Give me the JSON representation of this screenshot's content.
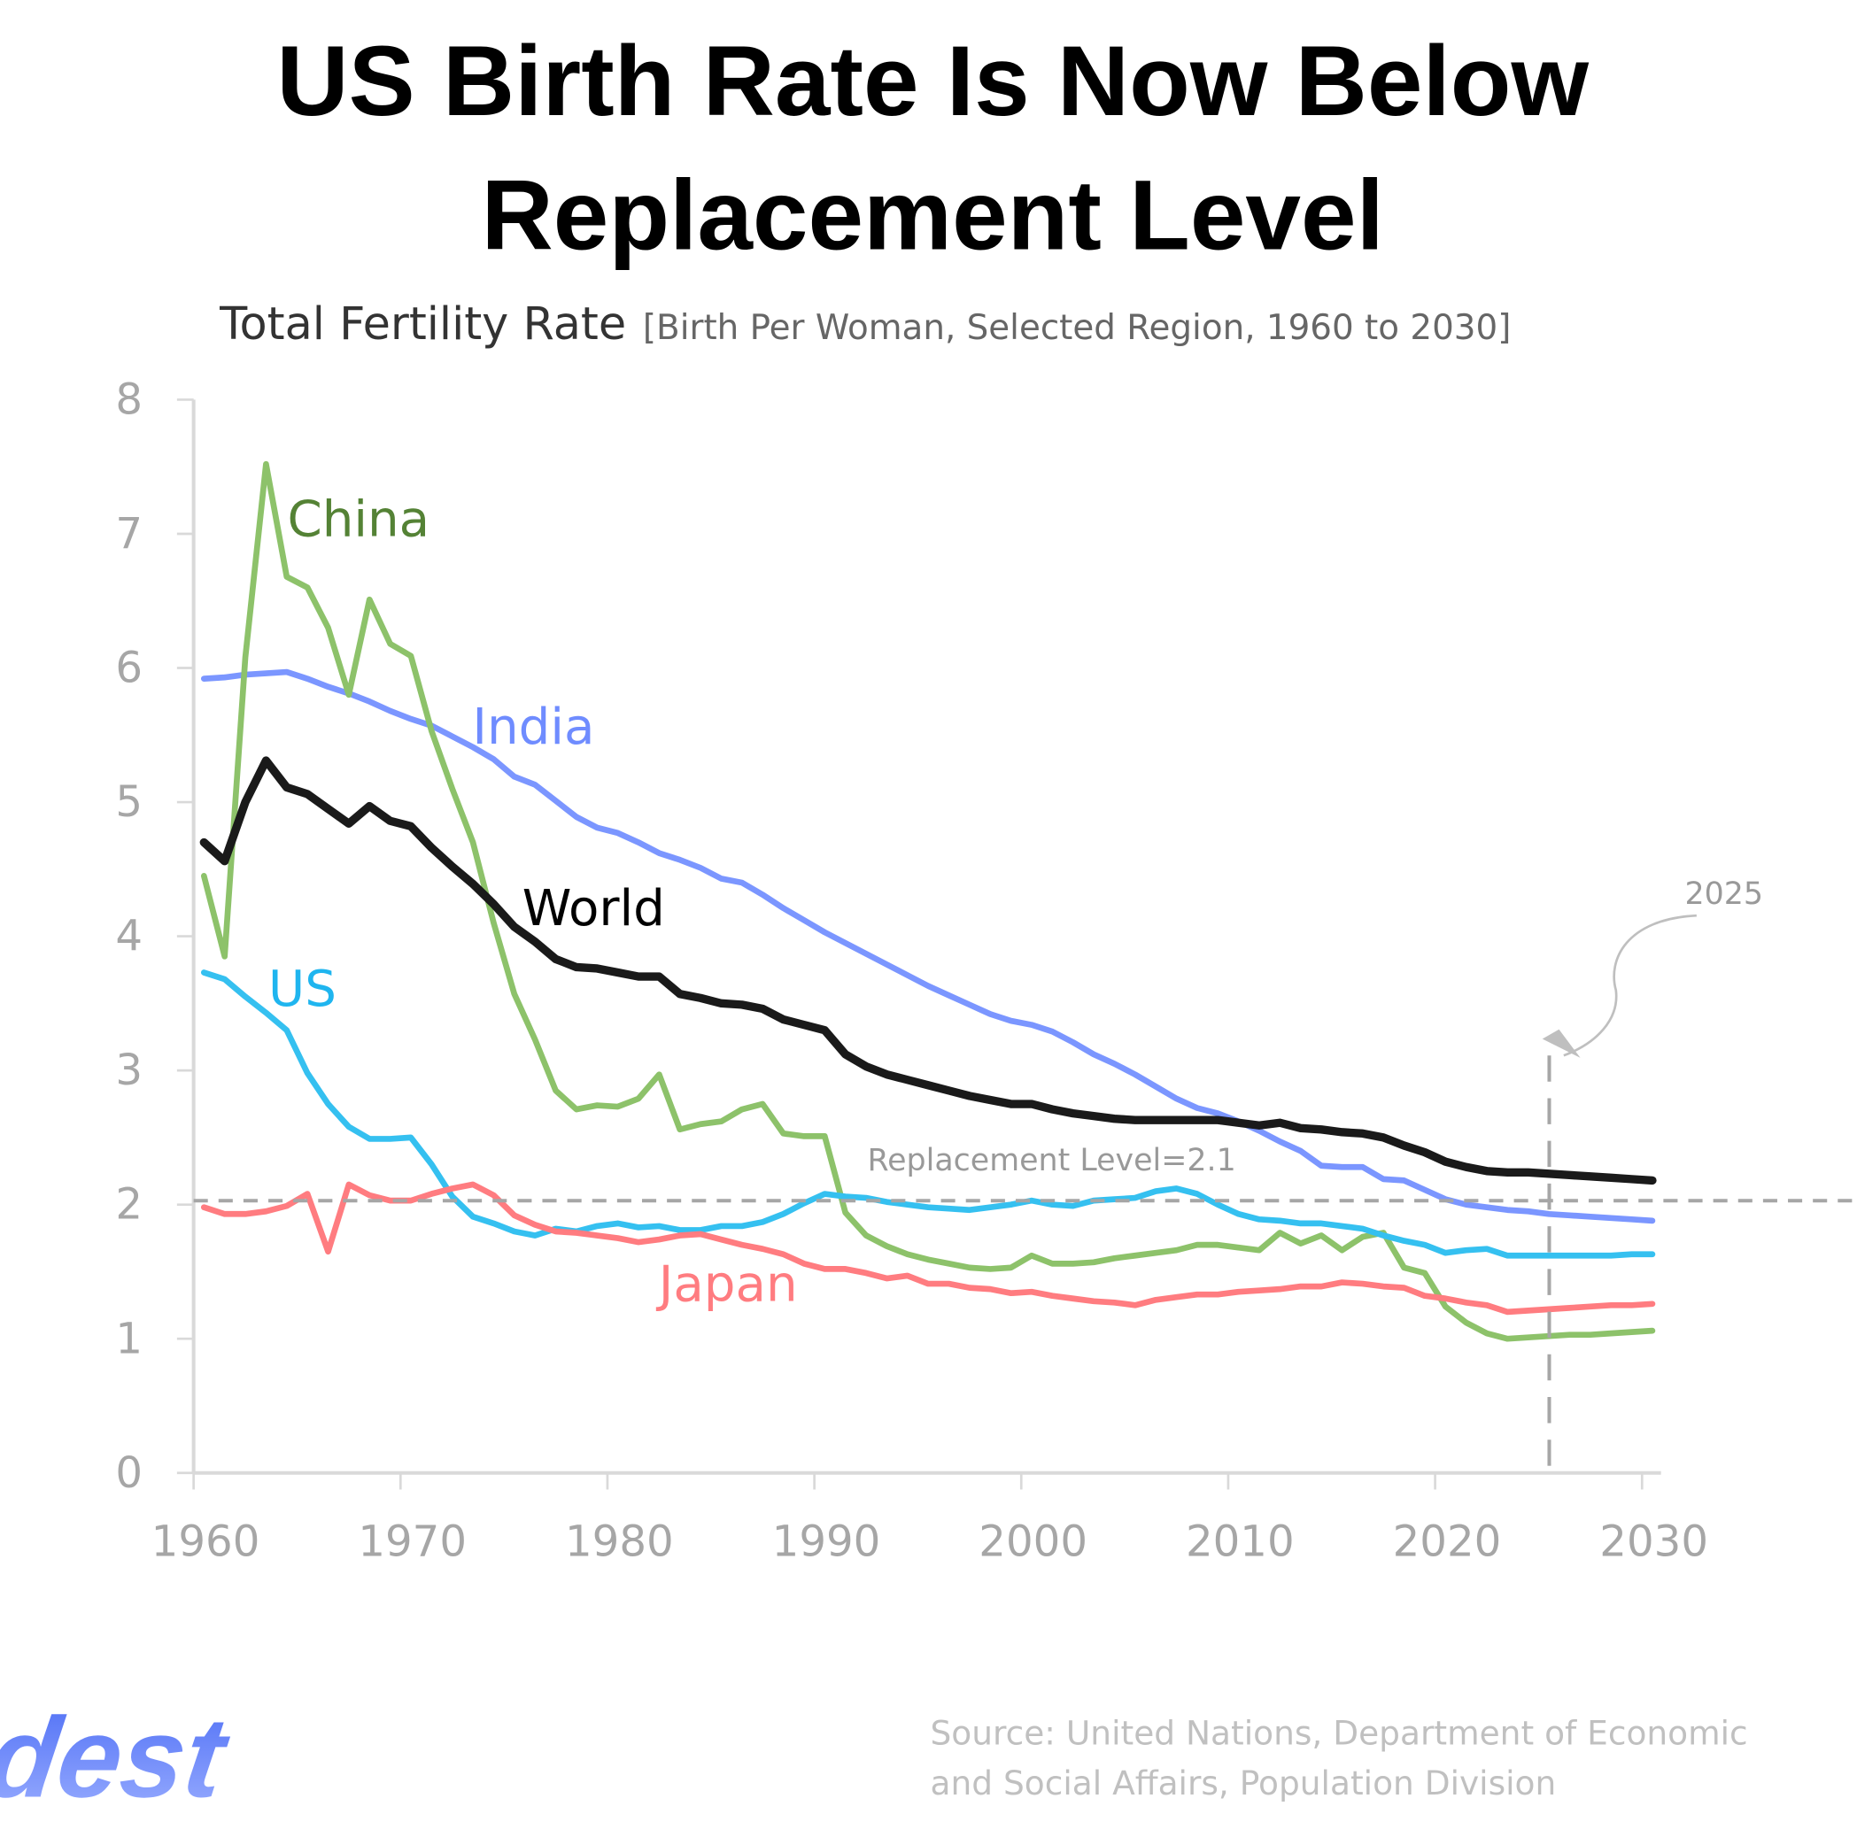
{
  "header": {
    "title_line1": "US Birth Rate Is Now Below",
    "title_line2": "Replacement Level",
    "subtitle_main": "Total Fertility  Rate",
    "subtitle_detail": "[Birth Per Woman, Selected Region, 1960 to 2030]"
  },
  "footer": {
    "logo": "Yodest",
    "source_line1": "Source: United Nations, Department of Economic",
    "source_line2": "and Social Affairs, Population Division"
  },
  "chart_data": {
    "type": "line",
    "title": "US Birth Rate Is Now Below Replacement Level",
    "xlabel": "",
    "ylabel": "",
    "xlim": [
      1960,
      2030
    ],
    "ylim": [
      0,
      8
    ],
    "x_ticks": [
      "1960",
      "1970",
      "1980",
      "1990",
      "2000",
      "2010",
      "2020",
      "2030"
    ],
    "y_ticks": [
      "0",
      "1",
      "2",
      "3",
      "4",
      "5",
      "6",
      "7",
      "8"
    ],
    "grid": false,
    "legend": "inline labels",
    "x_start": 1960,
    "reference_line": {
      "label": "Replacement Level=2.1",
      "value": 2.1
    },
    "marker_line": {
      "label": "2025",
      "x": 2025
    },
    "series": [
      {
        "name": "China",
        "color": "#8dc26a",
        "label_color": "#548235",
        "values": [
          4.45,
          3.85,
          6.08,
          7.52,
          6.68,
          6.6,
          6.3,
          5.8,
          6.51,
          6.18,
          6.09,
          5.53,
          5.1,
          4.7,
          4.1,
          3.57,
          3.23,
          2.85,
          2.71,
          2.74,
          2.73,
          2.79,
          2.97,
          2.56,
          2.6,
          2.62,
          2.71,
          2.75,
          2.53,
          2.51,
          2.51,
          1.94,
          1.77,
          1.69,
          1.63,
          1.59,
          1.56,
          1.53,
          1.52,
          1.53,
          1.62,
          1.56,
          1.56,
          1.57,
          1.6,
          1.62,
          1.64,
          1.66,
          1.7,
          1.7,
          1.68,
          1.66,
          1.79,
          1.71,
          1.77,
          1.66,
          1.76,
          1.79,
          1.53,
          1.49,
          1.24,
          1.12,
          1.04,
          1.0,
          1.01,
          1.02,
          1.03,
          1.03,
          1.04,
          1.05,
          1.06
        ]
      },
      {
        "name": "India",
        "color": "#7b96ff",
        "label_color": "#6f8cff",
        "values": [
          5.92,
          5.93,
          5.95,
          5.96,
          5.97,
          5.92,
          5.86,
          5.81,
          5.75,
          5.68,
          5.62,
          5.57,
          5.49,
          5.41,
          5.32,
          5.19,
          5.13,
          5.01,
          4.89,
          4.81,
          4.77,
          4.7,
          4.62,
          4.57,
          4.51,
          4.43,
          4.4,
          4.31,
          4.21,
          4.12,
          4.03,
          3.95,
          3.87,
          3.79,
          3.71,
          3.63,
          3.56,
          3.49,
          3.42,
          3.37,
          3.34,
          3.29,
          3.21,
          3.12,
          3.05,
          2.97,
          2.88,
          2.79,
          2.72,
          2.68,
          2.62,
          2.55,
          2.47,
          2.4,
          2.29,
          2.28,
          2.28,
          2.19,
          2.18,
          2.11,
          2.04,
          2.0,
          1.98,
          1.96,
          1.95,
          1.93,
          1.92,
          1.91,
          1.9,
          1.89,
          1.88
        ]
      },
      {
        "name": "World",
        "color": "#1a1a1a",
        "label_color": "#000000",
        "values": [
          4.7,
          4.56,
          5.0,
          5.31,
          5.11,
          5.06,
          4.95,
          4.84,
          4.97,
          4.86,
          4.82,
          4.66,
          4.52,
          4.39,
          4.24,
          4.07,
          3.96,
          3.83,
          3.77,
          3.76,
          3.73,
          3.7,
          3.7,
          3.57,
          3.54,
          3.5,
          3.49,
          3.46,
          3.38,
          3.34,
          3.3,
          3.12,
          3.03,
          2.97,
          2.93,
          2.89,
          2.85,
          2.81,
          2.78,
          2.75,
          2.75,
          2.71,
          2.68,
          2.66,
          2.64,
          2.63,
          2.63,
          2.63,
          2.63,
          2.63,
          2.61,
          2.59,
          2.61,
          2.57,
          2.56,
          2.54,
          2.53,
          2.5,
          2.44,
          2.39,
          2.32,
          2.28,
          2.25,
          2.24,
          2.24,
          2.23,
          2.22,
          2.21,
          2.2,
          2.19,
          2.18
        ]
      },
      {
        "name": "US",
        "color": "#35c0f0",
        "label_color": "#1fb5ef",
        "values": [
          3.73,
          3.68,
          3.55,
          3.43,
          3.3,
          2.98,
          2.75,
          2.58,
          2.49,
          2.49,
          2.5,
          2.3,
          2.06,
          1.91,
          1.86,
          1.8,
          1.77,
          1.82,
          1.8,
          1.84,
          1.86,
          1.83,
          1.84,
          1.81,
          1.81,
          1.84,
          1.84,
          1.87,
          1.93,
          2.01,
          2.08,
          2.06,
          2.05,
          2.02,
          2.0,
          1.98,
          1.97,
          1.96,
          1.98,
          2.0,
          2.03,
          2.0,
          1.99,
          2.03,
          2.04,
          2.05,
          2.1,
          2.12,
          2.08,
          2.0,
          1.93,
          1.89,
          1.88,
          1.86,
          1.86,
          1.84,
          1.82,
          1.77,
          1.73,
          1.7,
          1.64,
          1.66,
          1.67,
          1.62,
          1.62,
          1.62,
          1.62,
          1.62,
          1.62,
          1.63,
          1.63
        ]
      },
      {
        "name": "Japan",
        "color": "#ff7c80",
        "label_color": "#ff7c80",
        "values": [
          1.98,
          1.93,
          1.93,
          1.95,
          1.99,
          2.08,
          1.65,
          2.15,
          2.07,
          2.03,
          2.03,
          2.08,
          2.12,
          2.15,
          2.07,
          1.92,
          1.85,
          1.8,
          1.79,
          1.77,
          1.75,
          1.72,
          1.74,
          1.77,
          1.78,
          1.74,
          1.7,
          1.67,
          1.63,
          1.56,
          1.52,
          1.52,
          1.49,
          1.45,
          1.47,
          1.41,
          1.41,
          1.38,
          1.37,
          1.34,
          1.35,
          1.32,
          1.3,
          1.28,
          1.27,
          1.25,
          1.29,
          1.31,
          1.33,
          1.33,
          1.35,
          1.36,
          1.37,
          1.39,
          1.39,
          1.42,
          1.41,
          1.39,
          1.38,
          1.32,
          1.3,
          1.27,
          1.25,
          1.2,
          1.21,
          1.22,
          1.23,
          1.24,
          1.25,
          1.25,
          1.26
        ]
      }
    ]
  }
}
